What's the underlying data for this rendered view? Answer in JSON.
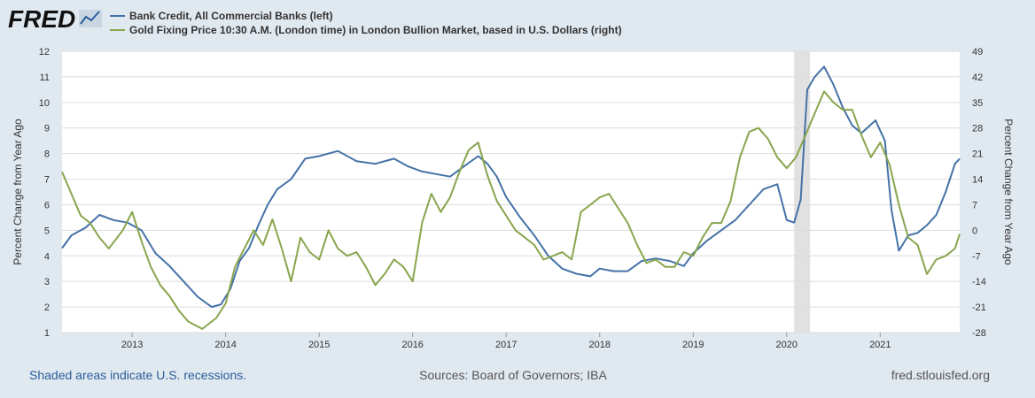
{
  "brand": {
    "logo_text": "FRED",
    "logo_mark": "chart-line-icon"
  },
  "colors": {
    "series1": "#4572a7",
    "series2": "#89a54e",
    "recession": "#e1e1e1",
    "grid": "#dcdcdc",
    "background": "#e1e9f0",
    "plot_bg": "#ffffff"
  },
  "footer": {
    "recessions_note": "Shaded areas indicate U.S. recessions.",
    "sources": "Sources: Board of Governors; IBA",
    "site": "fred.stlouisfed.org"
  },
  "chart_data": {
    "type": "line",
    "x_range": [
      2012.25,
      2021.85
    ],
    "x_ticks": [
      "2013",
      "2014",
      "2015",
      "2016",
      "2017",
      "2018",
      "2019",
      "2020",
      "2021"
    ],
    "x_tick_values": [
      2013,
      2014,
      2015,
      2016,
      2017,
      2018,
      2019,
      2020,
      2021
    ],
    "left_axis": {
      "title": "Percent Change from Year Ago",
      "ylim": [
        1,
        12
      ],
      "ticks": [
        "1",
        "2",
        "3",
        "4",
        "5",
        "6",
        "7",
        "8",
        "9",
        "10",
        "11",
        "12"
      ]
    },
    "right_axis": {
      "title": "Percent Change from Year Ago",
      "ylim": [
        -28,
        49
      ],
      "ticks": [
        "-28",
        "-21",
        "-14",
        "-7",
        "0",
        "7",
        "14",
        "21",
        "28",
        "35",
        "42",
        "49"
      ]
    },
    "recessions": [
      [
        2020.08,
        2020.25
      ]
    ],
    "series": [
      {
        "name": "Bank Credit, All Commercial Banks (left)",
        "axis": "left",
        "x": [
          2012.25,
          2012.35,
          2012.5,
          2012.65,
          2012.8,
          2012.95,
          2013.1,
          2013.25,
          2013.4,
          2013.55,
          2013.7,
          2013.85,
          2013.95,
          2014.05,
          2014.15,
          2014.25,
          2014.35,
          2014.45,
          2014.55,
          2014.7,
          2014.85,
          2015.0,
          2015.2,
          2015.4,
          2015.6,
          2015.8,
          2015.95,
          2016.1,
          2016.25,
          2016.4,
          2016.55,
          2016.7,
          2016.8,
          2016.9,
          2017.0,
          2017.15,
          2017.3,
          2017.45,
          2017.6,
          2017.75,
          2017.9,
          2018.0,
          2018.15,
          2018.3,
          2018.45,
          2018.6,
          2018.75,
          2018.9,
          2019.0,
          2019.15,
          2019.3,
          2019.45,
          2019.6,
          2019.75,
          2019.9,
          2020.0,
          2020.08,
          2020.15,
          2020.22,
          2020.3,
          2020.4,
          2020.5,
          2020.6,
          2020.7,
          2020.8,
          2020.95,
          2021.05,
          2021.12,
          2021.2,
          2021.3,
          2021.4,
          2021.5,
          2021.6,
          2021.7,
          2021.8,
          2021.85
        ],
        "values": [
          4.3,
          4.8,
          5.1,
          5.6,
          5.4,
          5.3,
          5.0,
          4.1,
          3.6,
          3.0,
          2.4,
          2.0,
          2.1,
          2.7,
          3.8,
          4.3,
          5.2,
          6.0,
          6.6,
          7.0,
          7.8,
          7.9,
          8.1,
          7.7,
          7.6,
          7.8,
          7.5,
          7.3,
          7.2,
          7.1,
          7.5,
          7.9,
          7.6,
          7.1,
          6.3,
          5.5,
          4.8,
          4.0,
          3.5,
          3.3,
          3.2,
          3.5,
          3.4,
          3.4,
          3.8,
          3.9,
          3.8,
          3.6,
          4.1,
          4.6,
          5.0,
          5.4,
          6.0,
          6.6,
          6.8,
          5.4,
          5.3,
          6.2,
          10.5,
          11.0,
          11.4,
          10.7,
          9.8,
          9.1,
          8.8,
          9.3,
          8.5,
          5.8,
          4.2,
          4.8,
          4.9,
          5.2,
          5.6,
          6.5,
          7.6,
          7.8
        ]
      },
      {
        "name": "Gold Fixing Price 10:30 A.M. (London time) in London Bullion Market, based in U.S. Dollars (right)",
        "axis": "right",
        "x": [
          2012.25,
          2012.35,
          2012.45,
          2012.55,
          2012.65,
          2012.75,
          2012.9,
          2013.0,
          2013.1,
          2013.2,
          2013.3,
          2013.4,
          2013.5,
          2013.6,
          2013.75,
          2013.9,
          2014.0,
          2014.1,
          2014.2,
          2014.3,
          2014.4,
          2014.5,
          2014.6,
          2014.7,
          2014.8,
          2014.9,
          2015.0,
          2015.1,
          2015.2,
          2015.3,
          2015.4,
          2015.5,
          2015.6,
          2015.7,
          2015.8,
          2015.9,
          2016.0,
          2016.1,
          2016.2,
          2016.3,
          2016.4,
          2016.5,
          2016.6,
          2016.7,
          2016.8,
          2016.9,
          2017.0,
          2017.1,
          2017.2,
          2017.3,
          2017.4,
          2017.5,
          2017.6,
          2017.7,
          2017.8,
          2017.9,
          2018.0,
          2018.1,
          2018.2,
          2018.3,
          2018.4,
          2018.5,
          2018.6,
          2018.7,
          2018.8,
          2018.9,
          2019.0,
          2019.1,
          2019.2,
          2019.3,
          2019.4,
          2019.5,
          2019.6,
          2019.7,
          2019.8,
          2019.9,
          2020.0,
          2020.1,
          2020.2,
          2020.3,
          2020.4,
          2020.5,
          2020.6,
          2020.7,
          2020.8,
          2020.9,
          2021.0,
          2021.1,
          2021.2,
          2021.3,
          2021.4,
          2021.5,
          2021.6,
          2021.7,
          2021.8,
          2021.85
        ],
        "values": [
          16,
          10,
          4,
          2,
          -2,
          -5,
          0,
          5,
          -3,
          -10,
          -15,
          -18,
          -22,
          -25,
          -27,
          -24,
          -20,
          -10,
          -5,
          0,
          -4,
          3,
          -5,
          -14,
          -2,
          -6,
          -8,
          0,
          -5,
          -7,
          -6,
          -10,
          -15,
          -12,
          -8,
          -10,
          -14,
          2,
          10,
          5,
          9,
          16,
          22,
          24,
          15,
          8,
          4,
          0,
          -2,
          -4,
          -8,
          -7,
          -6,
          -8,
          5,
          7,
          9,
          10,
          6,
          2,
          -4,
          -9,
          -8,
          -10,
          -10,
          -6,
          -7,
          -2,
          2,
          2,
          8,
          20,
          27,
          28,
          25,
          20,
          17,
          20,
          26,
          32,
          38,
          35,
          33,
          33,
          26,
          20,
          24,
          18,
          7,
          -2,
          -4,
          -12,
          -8,
          -7,
          -5,
          -1
        ]
      }
    ]
  }
}
